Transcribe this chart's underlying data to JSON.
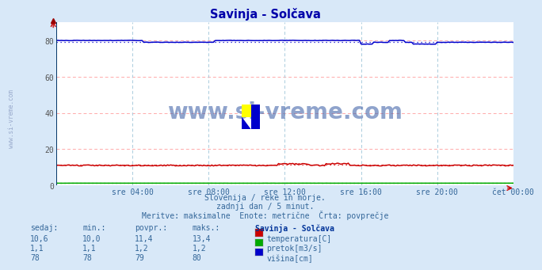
{
  "title": "Savinja - Solčava",
  "bg_color": "#d8e8f8",
  "plot_bg_color": "#ffffff",
  "grid_color_h": "#ffcccc",
  "grid_color_v": "#ccddee",
  "xlim": [
    0,
    288
  ],
  "ylim": [
    0,
    90
  ],
  "yticks": [
    0,
    20,
    40,
    60,
    80
  ],
  "xtick_labels": [
    "sre 04:00",
    "sre 08:00",
    "sre 12:00",
    "sre 16:00",
    "sre 20:00",
    "čet 00:00"
  ],
  "xtick_positions": [
    48,
    96,
    144,
    192,
    240,
    288
  ],
  "temp_color": "#cc0000",
  "pretok_color": "#00aa00",
  "visina_color": "#0000cc",
  "temp_avg": 11.4,
  "pretok_avg": 1.2,
  "visina_avg": 79,
  "subtitle1": "Slovenija / reke in morje.",
  "subtitle2": "zadnji dan / 5 minut.",
  "subtitle3": "Meritve: maksimalne  Enote: metrične  Črta: povprečje",
  "header_labels": [
    "sedaj:",
    "min.:",
    "povpr.:",
    "maks.:",
    "Savinja - Solčava"
  ],
  "table_temp": [
    "10,6",
    "10,0",
    "11,4",
    "13,4"
  ],
  "table_pretok": [
    "1,1",
    "1,1",
    "1,2",
    "1,2"
  ],
  "table_visina": [
    "78",
    "78",
    "79",
    "80"
  ],
  "label_temp": "temperatura[C]",
  "label_pretok": "pretok[m3/s]",
  "label_visina": "višina[cm]",
  "watermark_text": "www.si-vreme.com",
  "sidebar_text": "www.si-vreme.com",
  "text_color_blue": "#336699",
  "text_color_dark": "#003399",
  "title_color": "#0000aa"
}
